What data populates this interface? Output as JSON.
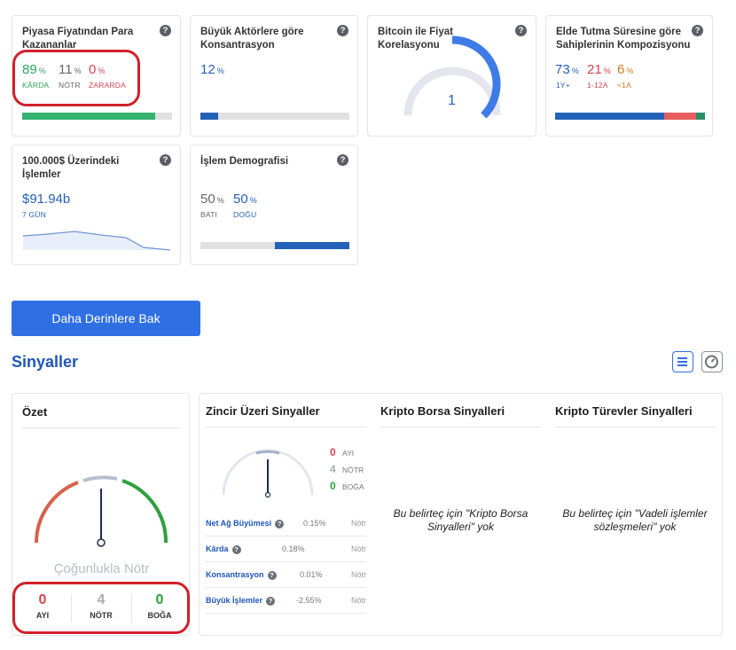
{
  "cards": {
    "profit": {
      "title": "Piyasa Fiyatından Para Kazananlar",
      "items": [
        {
          "value": "89",
          "unit": "%",
          "label": "KÂRDA"
        },
        {
          "value": "11",
          "unit": "%",
          "label": "NÖTR"
        },
        {
          "value": "0",
          "unit": "%",
          "label": "ZARARDA"
        }
      ],
      "bar_fraction": 0.89
    },
    "concentration": {
      "title": "Büyük Aktörlere göre Konsantrasyon",
      "value": "12",
      "unit": "%",
      "bar_fraction": 0.12
    },
    "correlation": {
      "title": "Bitcoin ile Fiyat Korelasyonu",
      "value": "1",
      "gauge_fraction": 1.0
    },
    "holding": {
      "title": "Elde Tutma Süresine göre Sahiplerinin Kompozisyonu",
      "items": [
        {
          "value": "73",
          "unit": "%",
          "label": "1Y+"
        },
        {
          "value": "21",
          "unit": "%",
          "label": "1-12A"
        },
        {
          "value": "6",
          "unit": "%",
          "label": "<1A"
        }
      ],
      "colors": [
        "#2461b8",
        "#e85e5e",
        "#2a8f6a"
      ]
    },
    "large_tx": {
      "title": "100.000$ Üzerindeki İşlemler",
      "value": "$91.94b",
      "label": "7 GÜN"
    },
    "demography": {
      "title": "İşlem Demografisi",
      "items": [
        {
          "value": "50",
          "unit": "%",
          "label": "BATI"
        },
        {
          "value": "50",
          "unit": "%",
          "label": "DOĞU"
        }
      ],
      "bar_fraction": 0.5
    }
  },
  "cta_label": "Daha Derinlere Bak",
  "signals_title": "Sinyaller",
  "icons": {
    "list_view": "list-icon",
    "gauge_view": "gauge-icon",
    "help": "question-icon"
  },
  "summary": {
    "title": "Özet",
    "verdict": "Çoğunlukla Nötr",
    "counts": [
      {
        "value": "0",
        "label": "AYI"
      },
      {
        "value": "4",
        "label": "NÖTR"
      },
      {
        "value": "0",
        "label": "BOĞA"
      }
    ]
  },
  "onchain": {
    "title": "Zincir Üzeri Sinyaller",
    "counts": [
      {
        "value": "0",
        "label": "AYI"
      },
      {
        "value": "4",
        "label": "NÖTR"
      },
      {
        "value": "0",
        "label": "BOĞA"
      }
    ],
    "rows": [
      {
        "label": "Net Ağ Büyümesi",
        "value": "0.15%",
        "signal": "Nötr"
      },
      {
        "label": "Kârda",
        "value": "0.18%",
        "signal": "Nötr"
      },
      {
        "label": "Konsantrasyon",
        "value": "0.01%",
        "signal": "Nötr"
      },
      {
        "label": "Büyük İşlemler",
        "value": "-2.55%",
        "signal": "Nötr"
      }
    ]
  },
  "exchange": {
    "title": "Kripto Borsa Sinyalleri",
    "empty": "Bu belirteç için \"Kripto Borsa Sinyalleri\" yok"
  },
  "derivatives": {
    "title": "Kripto Türevler Sinyalleri",
    "empty": "Bu belirteç için \"Vadeli işlemler sözleşmeleri\" yok"
  }
}
